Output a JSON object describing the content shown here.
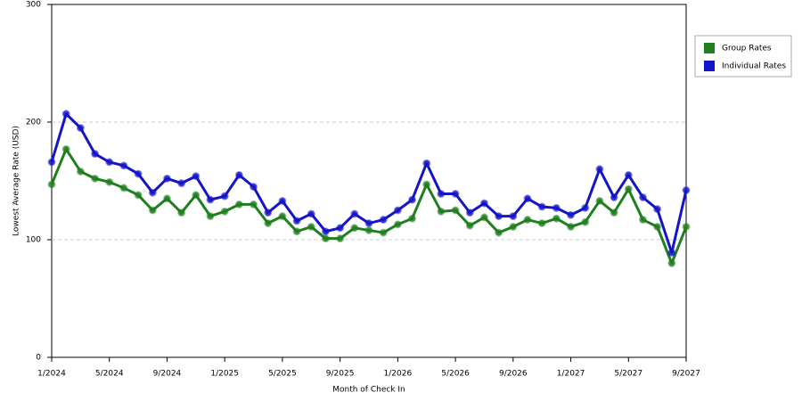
{
  "chart_data": {
    "type": "line",
    "x_label": "Month of Check In",
    "y_label": "Lowest Average Rate (USD)",
    "categories": [
      "1/2024",
      null,
      null,
      null,
      "5/2024",
      null,
      null,
      null,
      "9/2024",
      null,
      null,
      null,
      "1/2025",
      null,
      null,
      null,
      "5/2025",
      null,
      null,
      null,
      "9/2025",
      null,
      null,
      null,
      "1/2026",
      null,
      null,
      null,
      "5/2026",
      null,
      null,
      null,
      "9/2026",
      null,
      null,
      null,
      "1/2027",
      null,
      null,
      null,
      "5/2027",
      null,
      null,
      null,
      "9/2027"
    ],
    "series": [
      {
        "name": "Group Rates",
        "color": "#1f7f1f",
        "values": [
          147,
          177,
          158,
          152,
          149,
          144,
          138,
          125,
          135,
          123,
          138,
          120,
          124,
          130,
          130,
          114,
          120,
          107,
          111,
          101,
          101,
          110,
          108,
          106,
          113,
          118,
          147,
          124,
          125,
          112,
          119,
          106,
          111,
          117,
          114,
          118,
          111,
          115,
          133,
          123,
          143,
          117,
          111,
          80,
          111
        ]
      },
      {
        "name": "Individual Rates",
        "color": "#1414c8",
        "values": [
          166,
          207,
          195,
          173,
          166,
          163,
          156,
          140,
          152,
          148,
          154,
          134,
          137,
          155,
          145,
          123,
          133,
          116,
          122,
          107,
          110,
          122,
          114,
          117,
          125,
          134,
          165,
          139,
          139,
          123,
          131,
          120,
          120,
          135,
          128,
          127,
          121,
          127,
          160,
          136,
          155,
          136,
          126,
          89,
          142
        ]
      }
    ],
    "ylim": [
      0,
      300
    ],
    "yticks": [
      0,
      100,
      200,
      300
    ],
    "grid": true,
    "legend": "right"
  }
}
